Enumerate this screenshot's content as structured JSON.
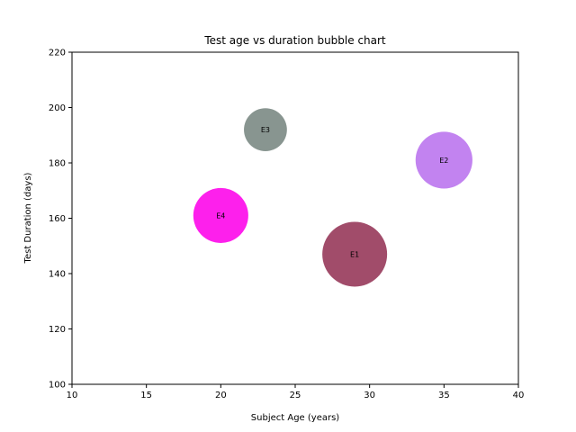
{
  "chart_data": {
    "type": "scatter",
    "title": "Test age vs duration bubble chart",
    "xlabel": "Subject Age (years)",
    "ylabel": "Test Duration  (days)",
    "xlim": [
      10,
      40
    ],
    "ylim": [
      100,
      220
    ],
    "xticks": [
      10,
      15,
      20,
      25,
      30,
      35,
      40
    ],
    "yticks": [
      100,
      120,
      140,
      160,
      180,
      200,
      220
    ],
    "grid": false,
    "points": [
      {
        "label": "E1",
        "x": 29,
        "y": 147,
        "size": 100,
        "color": "#a14c6a"
      },
      {
        "label": "E2",
        "x": 35,
        "y": 181,
        "size": 77,
        "color": "#c283f0"
      },
      {
        "label": "E3",
        "x": 23,
        "y": 192,
        "size": 44,
        "color": "#889590"
      },
      {
        "label": "E4",
        "x": 20,
        "y": 161,
        "size": 72,
        "color": "#fd20ec"
      }
    ]
  }
}
